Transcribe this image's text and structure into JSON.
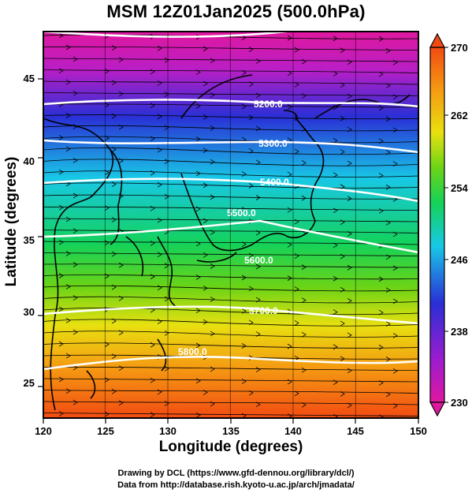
{
  "title": "MSM 12Z01Jan2025 (500.0hPa)",
  "axes": {
    "xlabel": "Longitude (degrees)",
    "ylabel": "Latitude  (degrees)",
    "xlim": [
      120,
      150
    ],
    "ylim": [
      22.5,
      48
    ],
    "xticks": [
      "120",
      "125",
      "130",
      "135",
      "140",
      "145",
      "150"
    ],
    "yticks": [
      "25",
      "30",
      "35",
      "40",
      "45"
    ]
  },
  "colorbar": {
    "min": 230,
    "max": 270,
    "ticks": [
      "230",
      "238",
      "246",
      "254",
      "262",
      "270"
    ],
    "colors": [
      "#e0189f",
      "#9c1ccf",
      "#2a2fd6",
      "#18c8e6",
      "#14d25a",
      "#6ad416",
      "#e8e010",
      "#f59a12",
      "#f24b12"
    ]
  },
  "contours": [
    {
      "label": "5200.0"
    },
    {
      "label": "5300.0"
    },
    {
      "label": "5400.0"
    },
    {
      "label": "5500.0"
    },
    {
      "label": "5600.0"
    },
    {
      "label": "5700.0"
    },
    {
      "label": "5800.0"
    }
  ],
  "credits": {
    "line1": "Drawing by DCL (https://www.gfd-dennou.org/library/dcl/)",
    "line2": "Data from http://database.rish.kyoto-u.ac.jp/arch/jmadata/"
  }
}
